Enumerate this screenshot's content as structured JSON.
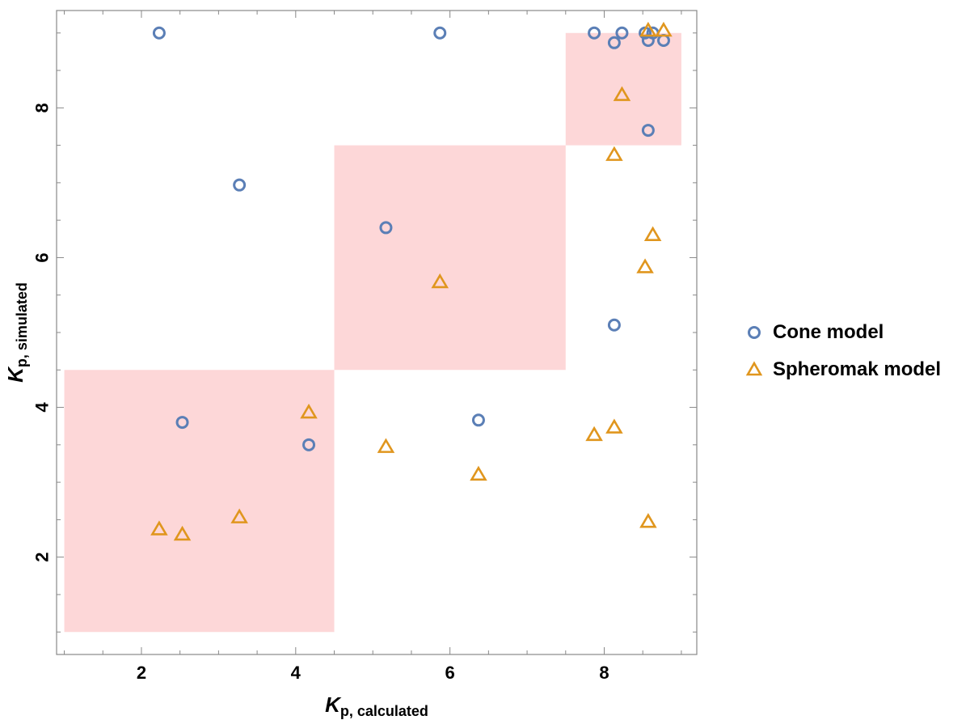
{
  "chart_data": {
    "type": "scatter",
    "xlabel_main": "K",
    "xlabel_sub": "p, calculated",
    "ylabel_main": "K",
    "ylabel_sub": "p, simulated",
    "xlim": [
      0.9,
      9.2
    ],
    "ylim": [
      0.7,
      9.3
    ],
    "x_ticks": [
      2,
      4,
      6,
      8
    ],
    "y_ticks": [
      2,
      4,
      6,
      8
    ],
    "x_tick_labels": [
      "2",
      "4",
      "6",
      "8"
    ],
    "y_tick_labels": [
      "2",
      "4",
      "6",
      "8"
    ],
    "grid": false,
    "legend_position": "right",
    "shaded_regions": [
      {
        "x": [
          1.0,
          4.5
        ],
        "y": [
          1.0,
          4.5
        ]
      },
      {
        "x": [
          4.5,
          7.5
        ],
        "y": [
          4.5,
          7.5
        ]
      },
      {
        "x": [
          7.5,
          9.0
        ],
        "y": [
          7.5,
          9.0
        ]
      }
    ],
    "shade_color": "#fdd7d8",
    "series": [
      {
        "name": "Cone model",
        "marker": "circle",
        "color": "#5b7fb6",
        "points": [
          [
            2.23,
            9.0
          ],
          [
            5.87,
            9.0
          ],
          [
            7.87,
            9.0
          ],
          [
            8.13,
            8.87
          ],
          [
            8.23,
            9.0
          ],
          [
            8.53,
            9.0
          ],
          [
            8.57,
            8.9
          ],
          [
            8.63,
            9.0
          ],
          [
            8.77,
            8.9
          ],
          [
            8.57,
            7.7
          ],
          [
            3.27,
            6.97
          ],
          [
            5.17,
            6.4
          ],
          [
            8.13,
            5.1
          ],
          [
            2.53,
            3.8
          ],
          [
            6.37,
            3.83
          ],
          [
            4.17,
            3.5
          ]
        ]
      },
      {
        "name": "Spheromak model",
        "marker": "triangle",
        "color": "#e0961e",
        "points": [
          [
            8.57,
            9.03
          ],
          [
            8.77,
            9.03
          ],
          [
            8.23,
            8.17
          ],
          [
            8.13,
            7.37
          ],
          [
            8.63,
            6.3
          ],
          [
            8.53,
            5.87
          ],
          [
            5.87,
            5.67
          ],
          [
            4.17,
            3.93
          ],
          [
            8.13,
            3.73
          ],
          [
            7.87,
            3.63
          ],
          [
            5.17,
            3.47
          ],
          [
            6.37,
            3.1
          ],
          [
            3.27,
            2.53
          ],
          [
            8.57,
            2.47
          ],
          [
            2.23,
            2.37
          ],
          [
            2.53,
            2.3
          ]
        ]
      }
    ]
  }
}
